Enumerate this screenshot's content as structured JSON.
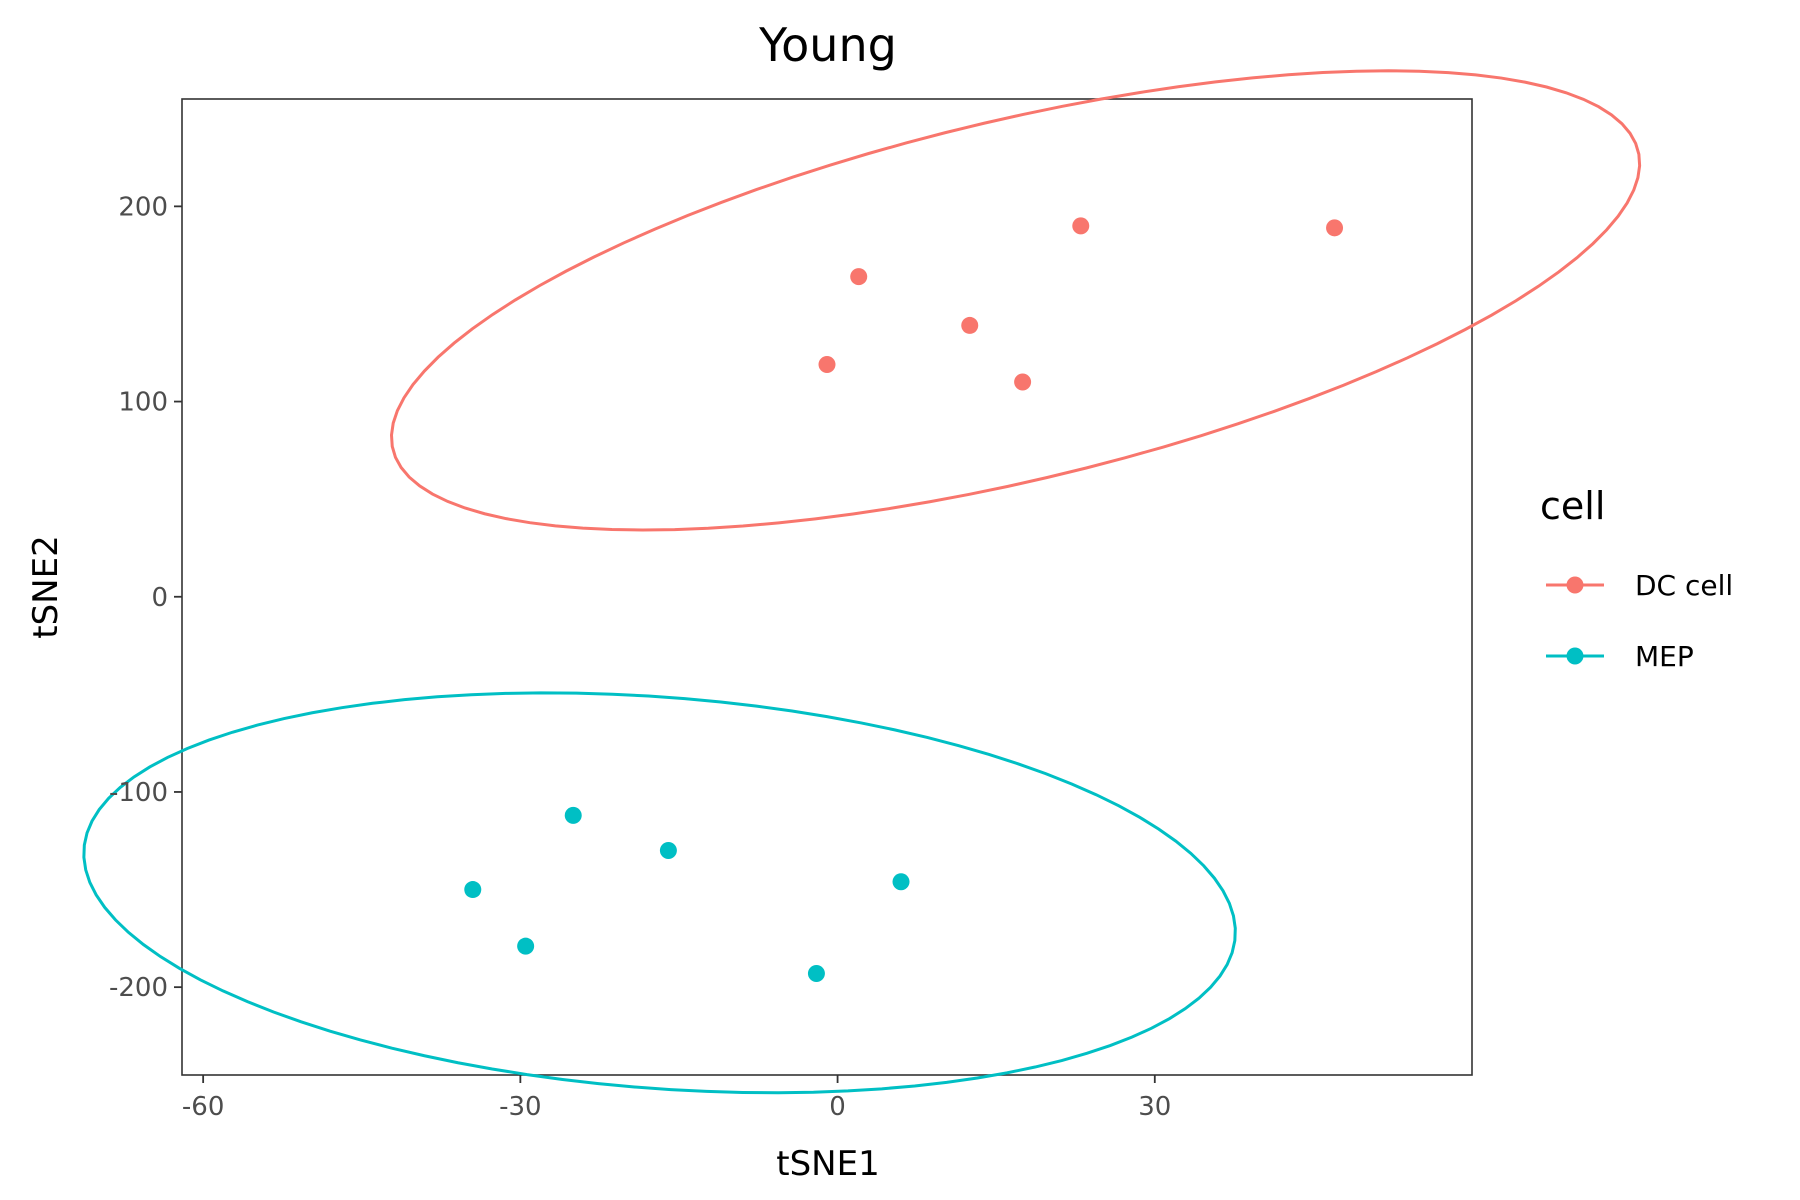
{
  "chart_data": {
    "type": "scatter",
    "title": "Young",
    "xlabel": "tSNE1",
    "ylabel": "tSNE2",
    "xlim": [
      -62,
      60
    ],
    "ylim": [
      -245,
      255
    ],
    "x_ticks": [
      -60,
      -30,
      0,
      30
    ],
    "y_ticks": [
      -200,
      -100,
      0,
      100,
      200
    ],
    "x_tick_labels": [
      "-60",
      "-30",
      "0",
      "30"
    ],
    "y_tick_labels": [
      "-200",
      "-100",
      "0",
      "100",
      "200"
    ],
    "grid": false,
    "legend": {
      "title": "cell",
      "position": "right"
    },
    "series": [
      {
        "name": "DC cell",
        "color": "#F8766D",
        "points": [
          {
            "x": 2,
            "y": 164
          },
          {
            "x": 23,
            "y": 190
          },
          {
            "x": 47,
            "y": 189
          },
          {
            "x": 12.5,
            "y": 139
          },
          {
            "x": -1,
            "y": 119
          },
          {
            "x": 17.5,
            "y": 110
          }
        ],
        "ellipse": true
      },
      {
        "name": "MEP",
        "color": "#00BFC4",
        "points": [
          {
            "x": -25,
            "y": -112
          },
          {
            "x": -16,
            "y": -130
          },
          {
            "x": -34.5,
            "y": -150
          },
          {
            "x": -29.5,
            "y": -179
          },
          {
            "x": 6,
            "y": -146
          },
          {
            "x": -2,
            "y": -193
          }
        ],
        "ellipse": true
      }
    ]
  }
}
